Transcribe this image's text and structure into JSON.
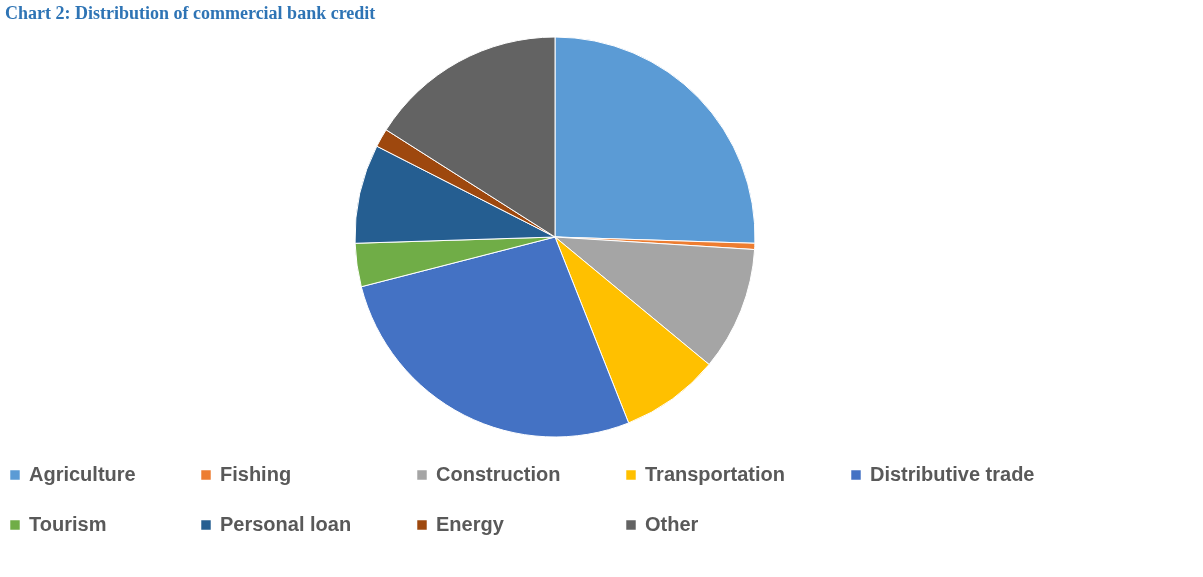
{
  "chart_data": {
    "type": "pie",
    "title": "Chart 2: Distribution of commercial bank credit",
    "categories": [
      "Agriculture",
      "Fishing",
      "Construction",
      "Transportation",
      "Distributive trade",
      "Tourism",
      "Personal loan",
      "Energy",
      "Other"
    ],
    "values": [
      25.5,
      0.5,
      10,
      8,
      27,
      3.5,
      8,
      1.5,
      16
    ],
    "colors": [
      "#5b9bd5",
      "#ed7d31",
      "#a5a5a5",
      "#ffc000",
      "#4472c4",
      "#70ad47",
      "#255e91",
      "#9e480e",
      "#636363"
    ],
    "legend": "bottom"
  }
}
